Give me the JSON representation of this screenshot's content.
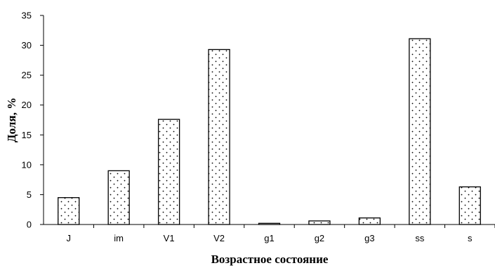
{
  "chart_data": {
    "type": "bar",
    "title": "",
    "xlabel": "Возрастное состояние",
    "ylabel": "Доля, %",
    "categories": [
      "J",
      "im",
      "V1",
      "V2",
      "g1",
      "g2",
      "g3",
      "ss",
      "s"
    ],
    "values": [
      4.5,
      9.0,
      17.6,
      29.3,
      0.2,
      0.6,
      1.1,
      31.1,
      6.3
    ],
    "ylim": [
      0,
      35
    ],
    "yticks": [
      "0",
      "5",
      "10",
      "15",
      "20",
      "25",
      "30",
      "35"
    ],
    "grid": false,
    "legend": "none",
    "bar_fill": "#ffffff",
    "bar_pattern": "dotted",
    "bar_stroke": "#000000"
  }
}
